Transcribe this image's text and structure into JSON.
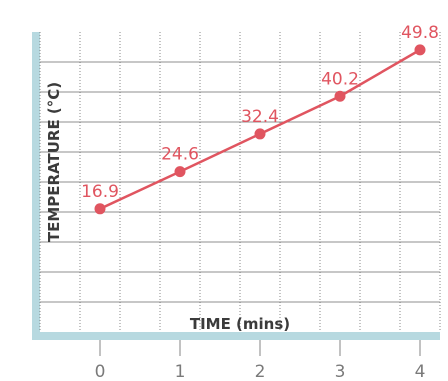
{
  "chart_data": {
    "type": "line",
    "x": [
      0,
      1,
      2,
      3,
      4
    ],
    "xticks": [
      "0",
      "1",
      "2",
      "3",
      "4"
    ],
    "xlabel": "TIME (mins)",
    "ylabel": "TEMPERATURE (°C)",
    "series": [
      {
        "values": [
          16.9,
          24.6,
          32.4,
          40.2,
          49.8
        ],
        "labels": [
          "16.9",
          "24.6",
          "32.4",
          "40.2",
          "49.8"
        ]
      }
    ],
    "xlim": [
      -0.75,
      4.25
    ],
    "ylim": [
      -8.6,
      53.5
    ],
    "grid": true,
    "colors": {
      "line": "#e05560",
      "marker": "#e05560",
      "grid": "#6a6a6a",
      "frame": "#b7d9e0",
      "labels": "#e05560",
      "ticks": "#7a7a7a"
    }
  }
}
